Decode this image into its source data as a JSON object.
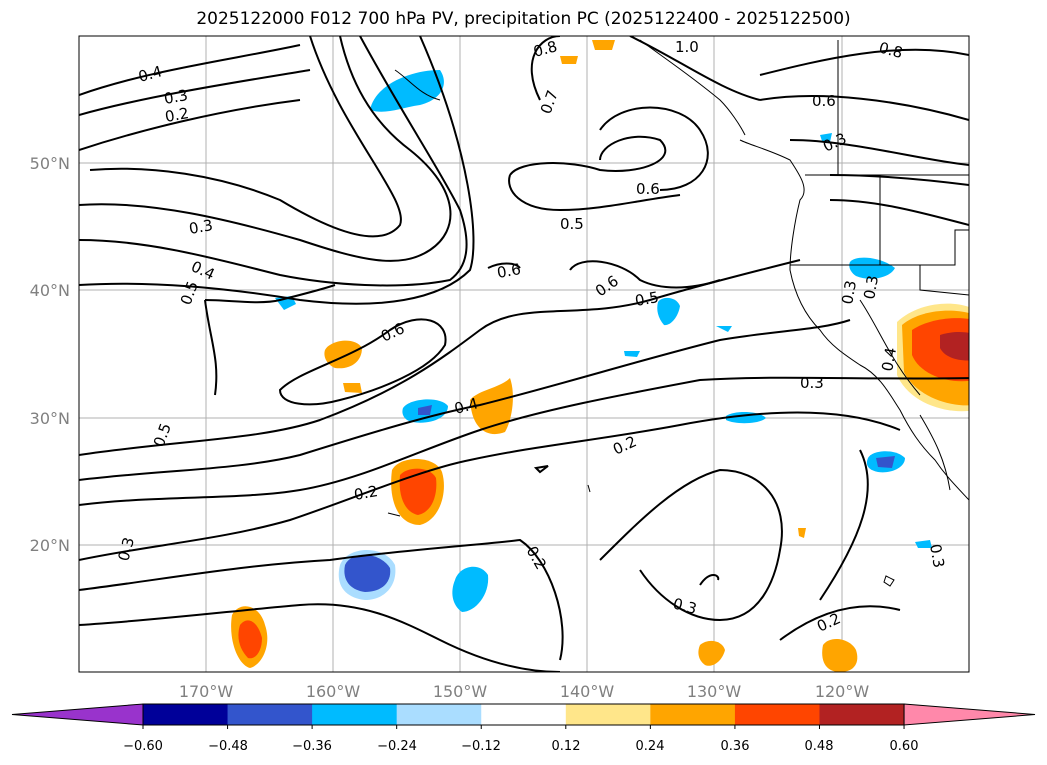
{
  "title": "2025122000 F012 700 hPa PV, precipitation PC (2025122400 - 2025122500)",
  "map": {
    "lon_range": [
      -180,
      -110
    ],
    "lat_range": [
      10,
      60
    ],
    "lat_labels": [
      "50°N",
      "40°N",
      "30°N",
      "20°N"
    ],
    "lon_labels": [
      "170°W",
      "160°W",
      "150°W",
      "140°W",
      "130°W",
      "120°W"
    ],
    "grid": true
  },
  "contour_labels": [
    "0.4",
    "0.3",
    "0.2",
    "0.8",
    "1.0",
    "0.8",
    "0.7",
    "0.6",
    "0.3",
    "0.6",
    "0.5",
    "0.3",
    "0.4",
    "0.5",
    "0.6",
    "0.6",
    "0.5",
    "0.6",
    "0.3",
    "0.3",
    "0.4",
    "0.3",
    "0.5",
    "0.4",
    "0.2",
    "0.2",
    "0.3",
    "0.2",
    "0.3",
    "0.2",
    "0.3"
  ],
  "colorbar": {
    "ticks": [
      "−0.60",
      "−0.48",
      "−0.36",
      "−0.24",
      "−0.12",
      "0.12",
      "0.24",
      "0.36",
      "0.48",
      "0.60"
    ],
    "colors": [
      "#9933cc",
      "#000099",
      "#3355cc",
      "#00bbff",
      "#aaddff",
      "#ffffff",
      "#ffe68a",
      "#ffa500",
      "#ff4500",
      "#b22222",
      "#ff88aa"
    ]
  }
}
